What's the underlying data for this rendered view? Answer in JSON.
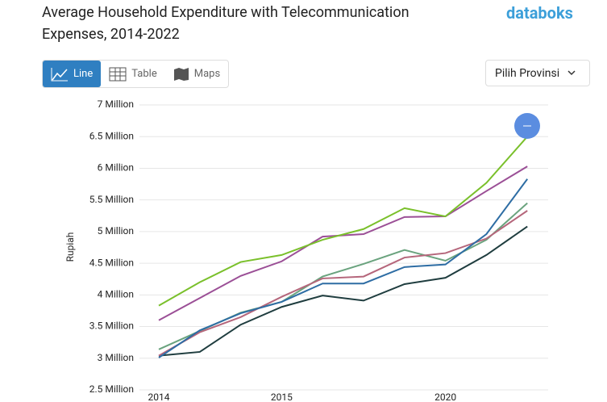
{
  "logo": "databoks",
  "tabs": [
    "Line",
    "Table",
    "Maps"
  ],
  "dropdown": "Pilih Provinsi",
  "chart_data": {
    "type": "line",
    "title": "Average Household Expenditure with Telecommunication Expenses, 2014-2022",
    "y_label": "Rupiah",
    "categories": [
      "2014",
      null,
      null,
      "2015",
      null,
      null,
      null,
      "2020",
      null,
      null
    ],
    "ylim": [
      2.5,
      7
    ],
    "yticks": [
      {
        "value": 2.5,
        "label": "2.5 Million"
      },
      {
        "value": 3,
        "label": "3 Million"
      },
      {
        "value": 3.5,
        "label": "3.5 Million"
      },
      {
        "value": 4,
        "label": "4 Million"
      },
      {
        "value": 4.5,
        "label": "4.5 Million"
      },
      {
        "value": 5,
        "label": "5 Million"
      },
      {
        "value": 5.5,
        "label": "5.5 Million"
      },
      {
        "value": 6,
        "label": "6 Million"
      },
      {
        "value": 6.5,
        "label": "6.5 Million"
      },
      {
        "value": 7,
        "label": "7 Million"
      }
    ],
    "grid": true,
    "series": [
      {
        "color": "#1f3d3f",
        "values": [
          3.04,
          3.1,
          3.53,
          3.81,
          3.99,
          3.91,
          4.17,
          4.27,
          4.63,
          5.08
        ]
      },
      {
        "color": "#6aa37e",
        "values": [
          3.14,
          3.43,
          3.72,
          3.89,
          4.29,
          4.49,
          4.71,
          4.54,
          4.87,
          5.45
        ]
      },
      {
        "color": "#b5667b",
        "values": [
          3.04,
          3.41,
          3.65,
          3.97,
          4.26,
          4.29,
          4.59,
          4.66,
          4.89,
          5.33
        ]
      },
      {
        "color": "#2e6da4",
        "values": [
          3.01,
          3.44,
          3.71,
          3.89,
          4.18,
          4.18,
          4.44,
          4.48,
          4.96,
          5.83
        ]
      },
      {
        "color": "#9b4f96",
        "values": [
          3.6,
          3.95,
          4.3,
          4.53,
          4.92,
          4.96,
          5.23,
          5.24,
          5.64,
          6.03
        ]
      },
      {
        "color": "#7ac02b",
        "values": [
          3.83,
          4.2,
          4.52,
          4.63,
          4.87,
          5.04,
          5.37,
          5.24,
          5.77,
          6.5
        ]
      }
    ]
  }
}
